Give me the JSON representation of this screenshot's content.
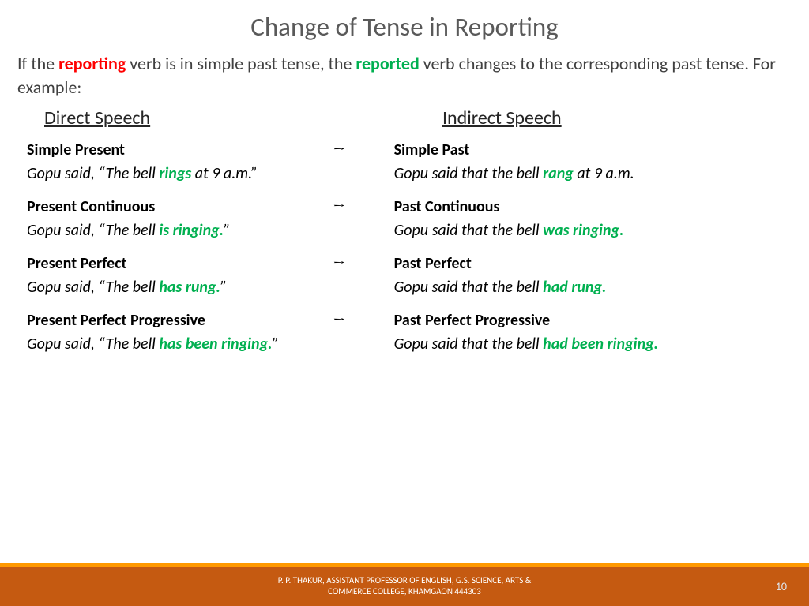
{
  "title": "Change of Tense in Reporting",
  "intro": {
    "p1": "If the ",
    "red": "reporting",
    "p2": " verb is in simple past tense, the ",
    "green": "reported",
    "p3": " verb changes to the corresponding past tense. For example:"
  },
  "headers": {
    "direct": "Direct Speech",
    "indirect": "Indirect Speech"
  },
  "arrow": "→",
  "rows": [
    {
      "tense_left": "Simple Present",
      "tense_right": "Simple Past",
      "ex_left_pre": "Gopu said, “The bell ",
      "ex_left_hl": "rings",
      "ex_left_post": " at 9 a.m.”",
      "ex_right_pre": "Gopu said that the bell ",
      "ex_right_hl": "rang",
      "ex_right_post": " at 9 a.m."
    },
    {
      "tense_left": "Present Continuous",
      "tense_right": "Past Continuous",
      "ex_left_pre": "Gopu said, “The bell ",
      "ex_left_hl": "is ringing.",
      "ex_left_post": "”",
      "ex_right_pre": "Gopu said that the bell ",
      "ex_right_hl": "was ringing.",
      "ex_right_post": ""
    },
    {
      "tense_left": "Present Perfect",
      "tense_right": "Past Perfect",
      "ex_left_pre": "Gopu said, “The bell ",
      "ex_left_hl": "has rung.",
      "ex_left_post": "”",
      "ex_right_pre": "Gopu said that the bell ",
      "ex_right_hl": "had rung.",
      "ex_right_post": ""
    },
    {
      "tense_left": "Present Perfect Progressive",
      "tense_right": "Past Perfect Progressive",
      "ex_left_pre": "Gopu said, “The bell ",
      "ex_left_hl": "has been ringing.",
      "ex_left_post": "”",
      "ex_right_pre": "Gopu said that the bell ",
      "ex_right_hl": "had been ringing.",
      "ex_right_post": ""
    }
  ],
  "footer": {
    "line1": "P. P. THAKUR, ASSISTANT PROFESSOR OF ENGLISH, G.S. SCIENCE, ARTS &",
    "line2": "COMMERCE COLLEGE, KHAMGAON 444303",
    "page": "10"
  },
  "colors": {
    "title": "#595959",
    "body": "#404040",
    "red": "#ff0000",
    "green": "#00b050",
    "footer_line": "#ff9900",
    "footer_bar": "#c55a11",
    "footer_text": "#ffffff",
    "page_color": "#dfe6ee",
    "background": "#ffffff"
  }
}
